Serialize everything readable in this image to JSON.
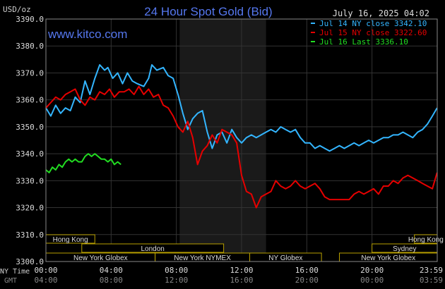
{
  "chart_data": {
    "type": "line",
    "title": "24 Hour Spot Gold (Bid)",
    "watermark": "www.kitco.com",
    "unit": "USD/oz",
    "date": "July 16, 2025 04:02",
    "ylim": [
      3300,
      3390
    ],
    "yticks": [
      "3300.0",
      "3310.0",
      "3320.0",
      "3330.0",
      "3340.0",
      "3350.0",
      "3360.0",
      "3370.0",
      "3380.0",
      "3390.0"
    ],
    "ny_time_label": "NY Time",
    "gmt_label": "GMT",
    "ny_time_ticks": [
      "00:00",
      "04:00",
      "08:00",
      "12:00",
      "16:00",
      "20:00",
      "23:59"
    ],
    "gmt_ticks": [
      "04:00",
      "08:00",
      "12:00",
      "16:00",
      "20:00",
      "00:00",
      "03:59"
    ],
    "colors": {
      "jul14": "#33b5ff",
      "jul15": "#e60000",
      "jul16": "#22dd22",
      "grid": "#333333",
      "session": "#b8a000",
      "shade": "#1a1a1a"
    },
    "legend": [
      {
        "text": "Jul 14 NY close 3342.10",
        "color": "#33b5ff"
      },
      {
        "text": "Jul 15 NY close 3322.60",
        "color": "#e60000"
      },
      {
        "text": "Jul 16 Last 3336.10",
        "color": "#22dd22"
      }
    ],
    "sessions": [
      {
        "label": "Hong Kong",
        "row": 0,
        "start": 0.0,
        "end": 3.0
      },
      {
        "label": "Hong Kong",
        "row": 0,
        "start": 22.6,
        "end": 24.0
      },
      {
        "label": "London",
        "row": 1,
        "start": 2.2,
        "end": 10.9
      },
      {
        "label": "Sydney",
        "row": 1,
        "start": 20.0,
        "end": 24.0
      },
      {
        "label": "New York Globex",
        "row": 2,
        "start": 0.0,
        "end": 6.7
      },
      {
        "label": "New York NYMEX",
        "row": 2,
        "start": 6.7,
        "end": 12.5
      },
      {
        "label": "NY Globex",
        "row": 2,
        "start": 12.5,
        "end": 16.9
      },
      {
        "label": "New York Globex",
        "row": 2,
        "start": 18.0,
        "end": 24.0
      }
    ],
    "shaded_x": [
      8.2,
      13.5
    ],
    "series": [
      {
        "name": "Jul 14",
        "x": [
          0.0,
          0.3,
          0.6,
          0.9,
          1.2,
          1.5,
          1.8,
          2.1,
          2.4,
          2.7,
          3.0,
          3.3,
          3.6,
          3.8,
          4.1,
          4.4,
          4.7,
          5.0,
          5.3,
          5.6,
          6.0,
          6.3,
          6.5,
          6.8,
          7.2,
          7.5,
          7.8,
          8.1,
          8.4,
          8.7,
          9.0,
          9.3,
          9.6,
          9.9,
          10.2,
          10.5,
          10.8,
          11.1,
          11.4,
          11.7,
          12.0,
          12.3,
          12.6,
          12.9,
          13.2,
          13.5,
          13.8,
          14.1,
          14.4,
          14.7,
          15.0,
          15.3,
          15.6,
          15.9,
          16.2,
          16.5,
          16.8,
          17.1,
          17.4,
          17.7,
          18.0,
          18.3,
          18.6,
          18.9,
          19.2,
          19.5,
          19.8,
          20.1,
          20.4,
          20.7,
          21.0,
          21.3,
          21.6,
          21.9,
          22.2,
          22.5,
          22.8,
          23.1,
          23.4,
          23.7,
          23.99
        ],
        "y": [
          3357,
          3354,
          3358,
          3355,
          3357,
          3356,
          3361,
          3359,
          3367,
          3362,
          3368,
          3373,
          3371,
          3372,
          3368,
          3370,
          3366,
          3370,
          3367,
          3366,
          3365,
          3368,
          3373,
          3371,
          3372,
          3369,
          3368,
          3362,
          3355,
          3349,
          3353,
          3355,
          3356,
          3348,
          3342,
          3347,
          3348,
          3344,
          3349,
          3346,
          3344,
          3346,
          3347,
          3346,
          3347,
          3348,
          3349,
          3348,
          3350,
          3349,
          3348,
          3349,
          3346,
          3344,
          3344,
          3342,
          3343,
          3342,
          3341,
          3342,
          3343,
          3342,
          3343,
          3344,
          3343,
          3344,
          3345,
          3344,
          3345,
          3346,
          3346,
          3347,
          3347,
          3348,
          3347,
          3346,
          3348,
          3349,
          3351,
          3354,
          3357
        ]
      },
      {
        "name": "Jul 15",
        "x": [
          0.0,
          0.3,
          0.6,
          0.9,
          1.2,
          1.5,
          1.8,
          2.1,
          2.4,
          2.7,
          3.0,
          3.3,
          3.6,
          3.9,
          4.2,
          4.5,
          4.8,
          5.1,
          5.4,
          5.7,
          6.0,
          6.3,
          6.6,
          6.9,
          7.2,
          7.5,
          7.8,
          8.1,
          8.4,
          8.7,
          9.0,
          9.3,
          9.6,
          9.9,
          10.2,
          10.5,
          10.8,
          11.1,
          11.4,
          11.7,
          12.0,
          12.3,
          12.6,
          12.9,
          13.2,
          13.5,
          13.8,
          14.1,
          14.4,
          14.7,
          15.0,
          15.3,
          15.6,
          15.9,
          16.2,
          16.5,
          16.8,
          17.1,
          17.4,
          17.7,
          18.0,
          18.3,
          18.6,
          18.9,
          19.2,
          19.5,
          19.8,
          20.1,
          20.4,
          20.7,
          21.0,
          21.3,
          21.6,
          21.9,
          22.2,
          22.5,
          22.8,
          23.1,
          23.4,
          23.7,
          23.99
        ],
        "y": [
          3357,
          3359,
          3361,
          3360,
          3362,
          3363,
          3364,
          3360,
          3358,
          3361,
          3360,
          3363,
          3362,
          3364,
          3361,
          3363,
          3363,
          3364,
          3362,
          3365,
          3362,
          3364,
          3361,
          3362,
          3358,
          3357,
          3354,
          3350,
          3348,
          3352,
          3346,
          3336,
          3341,
          3343,
          3347,
          3344,
          3349,
          3348,
          3347,
          3344,
          3332,
          3326,
          3325,
          3320,
          3324,
          3325,
          3326,
          3330,
          3328,
          3327,
          3328,
          3330,
          3328,
          3327,
          3328,
          3329,
          3327,
          3324,
          3323,
          3323,
          3323,
          3323,
          3323,
          3325,
          3326,
          3325,
          3326,
          3327,
          3325,
          3328,
          3328,
          3330,
          3329,
          3331,
          3332,
          3331,
          3330,
          3329,
          3328,
          3327,
          3333
        ]
      },
      {
        "name": "Jul 16",
        "x": [
          0.0,
          0.2,
          0.4,
          0.6,
          0.8,
          1.0,
          1.2,
          1.4,
          1.6,
          1.8,
          2.0,
          2.2,
          2.4,
          2.6,
          2.8,
          3.0,
          3.2,
          3.4,
          3.6,
          3.8,
          4.0,
          4.2,
          4.4,
          4.6
        ],
        "y": [
          3334,
          3333,
          3335,
          3334,
          3336,
          3335,
          3337,
          3338,
          3337,
          3338,
          3337,
          3337,
          3339,
          3340,
          3339,
          3340,
          3339,
          3338,
          3338,
          3337,
          3338,
          3336,
          3337,
          3336
        ]
      }
    ]
  }
}
